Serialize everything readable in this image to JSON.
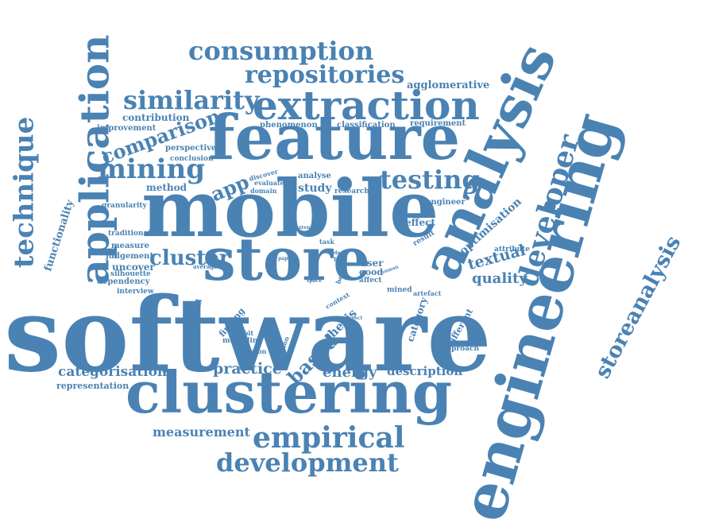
{
  "color": "#4a82b3",
  "words": [
    {
      "key": "software",
      "text": "software"
    },
    {
      "key": "engineering",
      "text": "engineering"
    },
    {
      "key": "mobile",
      "text": "mobile"
    },
    {
      "key": "analysis",
      "text": "analysis"
    },
    {
      "key": "feature",
      "text": "feature"
    },
    {
      "key": "store",
      "text": "store"
    },
    {
      "key": "clustering",
      "text": "clustering"
    },
    {
      "key": "application",
      "text": "application"
    },
    {
      "key": "extraction",
      "text": "extraction"
    },
    {
      "key": "technique",
      "text": "technique"
    },
    {
      "key": "developer",
      "text": "developer"
    },
    {
      "key": "storeanalysis",
      "text": "storeanalysis"
    },
    {
      "key": "empirical",
      "text": "empirical"
    },
    {
      "key": "development",
      "text": "development"
    },
    {
      "key": "consumption",
      "text": "consumption"
    },
    {
      "key": "repositories",
      "text": "repositories"
    },
    {
      "key": "similarity",
      "text": "similarity"
    },
    {
      "key": "mining",
      "text": "mining"
    },
    {
      "key": "testing",
      "text": "testing"
    },
    {
      "key": "comparison",
      "text": "comparison"
    },
    {
      "key": "cluster",
      "text": "cluster"
    },
    {
      "key": "app",
      "text": "app"
    },
    {
      "key": "categorisation",
      "text": "categorisation"
    },
    {
      "key": "measurement",
      "text": "measurement"
    },
    {
      "key": "practice",
      "text": "practice"
    },
    {
      "key": "energy",
      "text": "energy"
    },
    {
      "key": "description",
      "text": "description"
    },
    {
      "key": "based",
      "text": "based"
    },
    {
      "key": "quality",
      "text": "quality"
    },
    {
      "key": "textual",
      "text": "textual"
    },
    {
      "key": "optimisation",
      "text": "optimisation"
    },
    {
      "key": "functionality",
      "text": "functionality"
    },
    {
      "key": "agglomerative",
      "text": "agglomerative"
    },
    {
      "key": "contribution",
      "text": "contribution"
    },
    {
      "key": "improvement",
      "text": "improvement"
    },
    {
      "key": "phenomenon",
      "text": "phenomenon"
    },
    {
      "key": "classification",
      "text": "classification"
    },
    {
      "key": "requirement",
      "text": "requirement"
    },
    {
      "key": "perspective",
      "text": "perspective"
    },
    {
      "key": "conclusion",
      "text": "conclusion"
    },
    {
      "key": "method",
      "text": "method"
    },
    {
      "key": "study",
      "text": "study"
    },
    {
      "key": "analyse",
      "text": "analyse"
    },
    {
      "key": "research",
      "text": "research"
    },
    {
      "key": "engineer",
      "text": "engineer"
    },
    {
      "key": "granularity",
      "text": "granularity"
    },
    {
      "key": "effect",
      "text": "effect"
    },
    {
      "key": "traditional",
      "text": "traditional"
    },
    {
      "key": "measure",
      "text": "measure"
    },
    {
      "key": "judgement",
      "text": "judgement"
    },
    {
      "key": "uncover",
      "text": "uncover"
    },
    {
      "key": "dependency",
      "text": "dependency"
    },
    {
      "key": "silhouette",
      "text": "silhouette"
    },
    {
      "key": "interview",
      "text": "interview"
    },
    {
      "key": "user",
      "text": "user"
    },
    {
      "key": "good",
      "text": "good"
    },
    {
      "key": "affect",
      "text": "affect"
    },
    {
      "key": "mined",
      "text": "mined"
    },
    {
      "key": "attribute",
      "text": "attribute"
    },
    {
      "key": "result",
      "text": "result"
    },
    {
      "key": "thesis",
      "text": "thesis"
    },
    {
      "key": "category",
      "text": "category"
    },
    {
      "key": "different",
      "text": "different"
    },
    {
      "key": "approach",
      "text": "approach"
    },
    {
      "key": "finding",
      "text": "finding"
    },
    {
      "key": "exhibit",
      "text": "exhibit"
    },
    {
      "key": "modelling",
      "text": "modelling"
    },
    {
      "key": "criterion",
      "text": "criterion"
    },
    {
      "key": "hierarchical",
      "text": "hierarchical"
    },
    {
      "key": "representation",
      "text": "representation"
    },
    {
      "key": "guide",
      "text": "guide"
    },
    {
      "key": "discover",
      "text": "discover"
    },
    {
      "key": "evaluate",
      "text": "evaluate"
    },
    {
      "key": "domain",
      "text": "domain"
    },
    {
      "key": "artefact",
      "text": "artefact"
    },
    {
      "key": "context",
      "text": "context"
    },
    {
      "key": "execution",
      "text": "execution"
    },
    {
      "key": "better",
      "text": "better"
    },
    {
      "key": "text",
      "text": "text"
    },
    {
      "key": "task",
      "text": "task"
    },
    {
      "key": "average",
      "text": "average"
    },
    {
      "key": "extent",
      "text": "extent"
    },
    {
      "key": "paper",
      "text": "paper"
    },
    {
      "key": "human",
      "text": "human"
    },
    {
      "key": "ideal",
      "text": "ideal"
    },
    {
      "key": "correct",
      "text": "correct"
    },
    {
      "key": "space",
      "text": "space"
    }
  ]
}
